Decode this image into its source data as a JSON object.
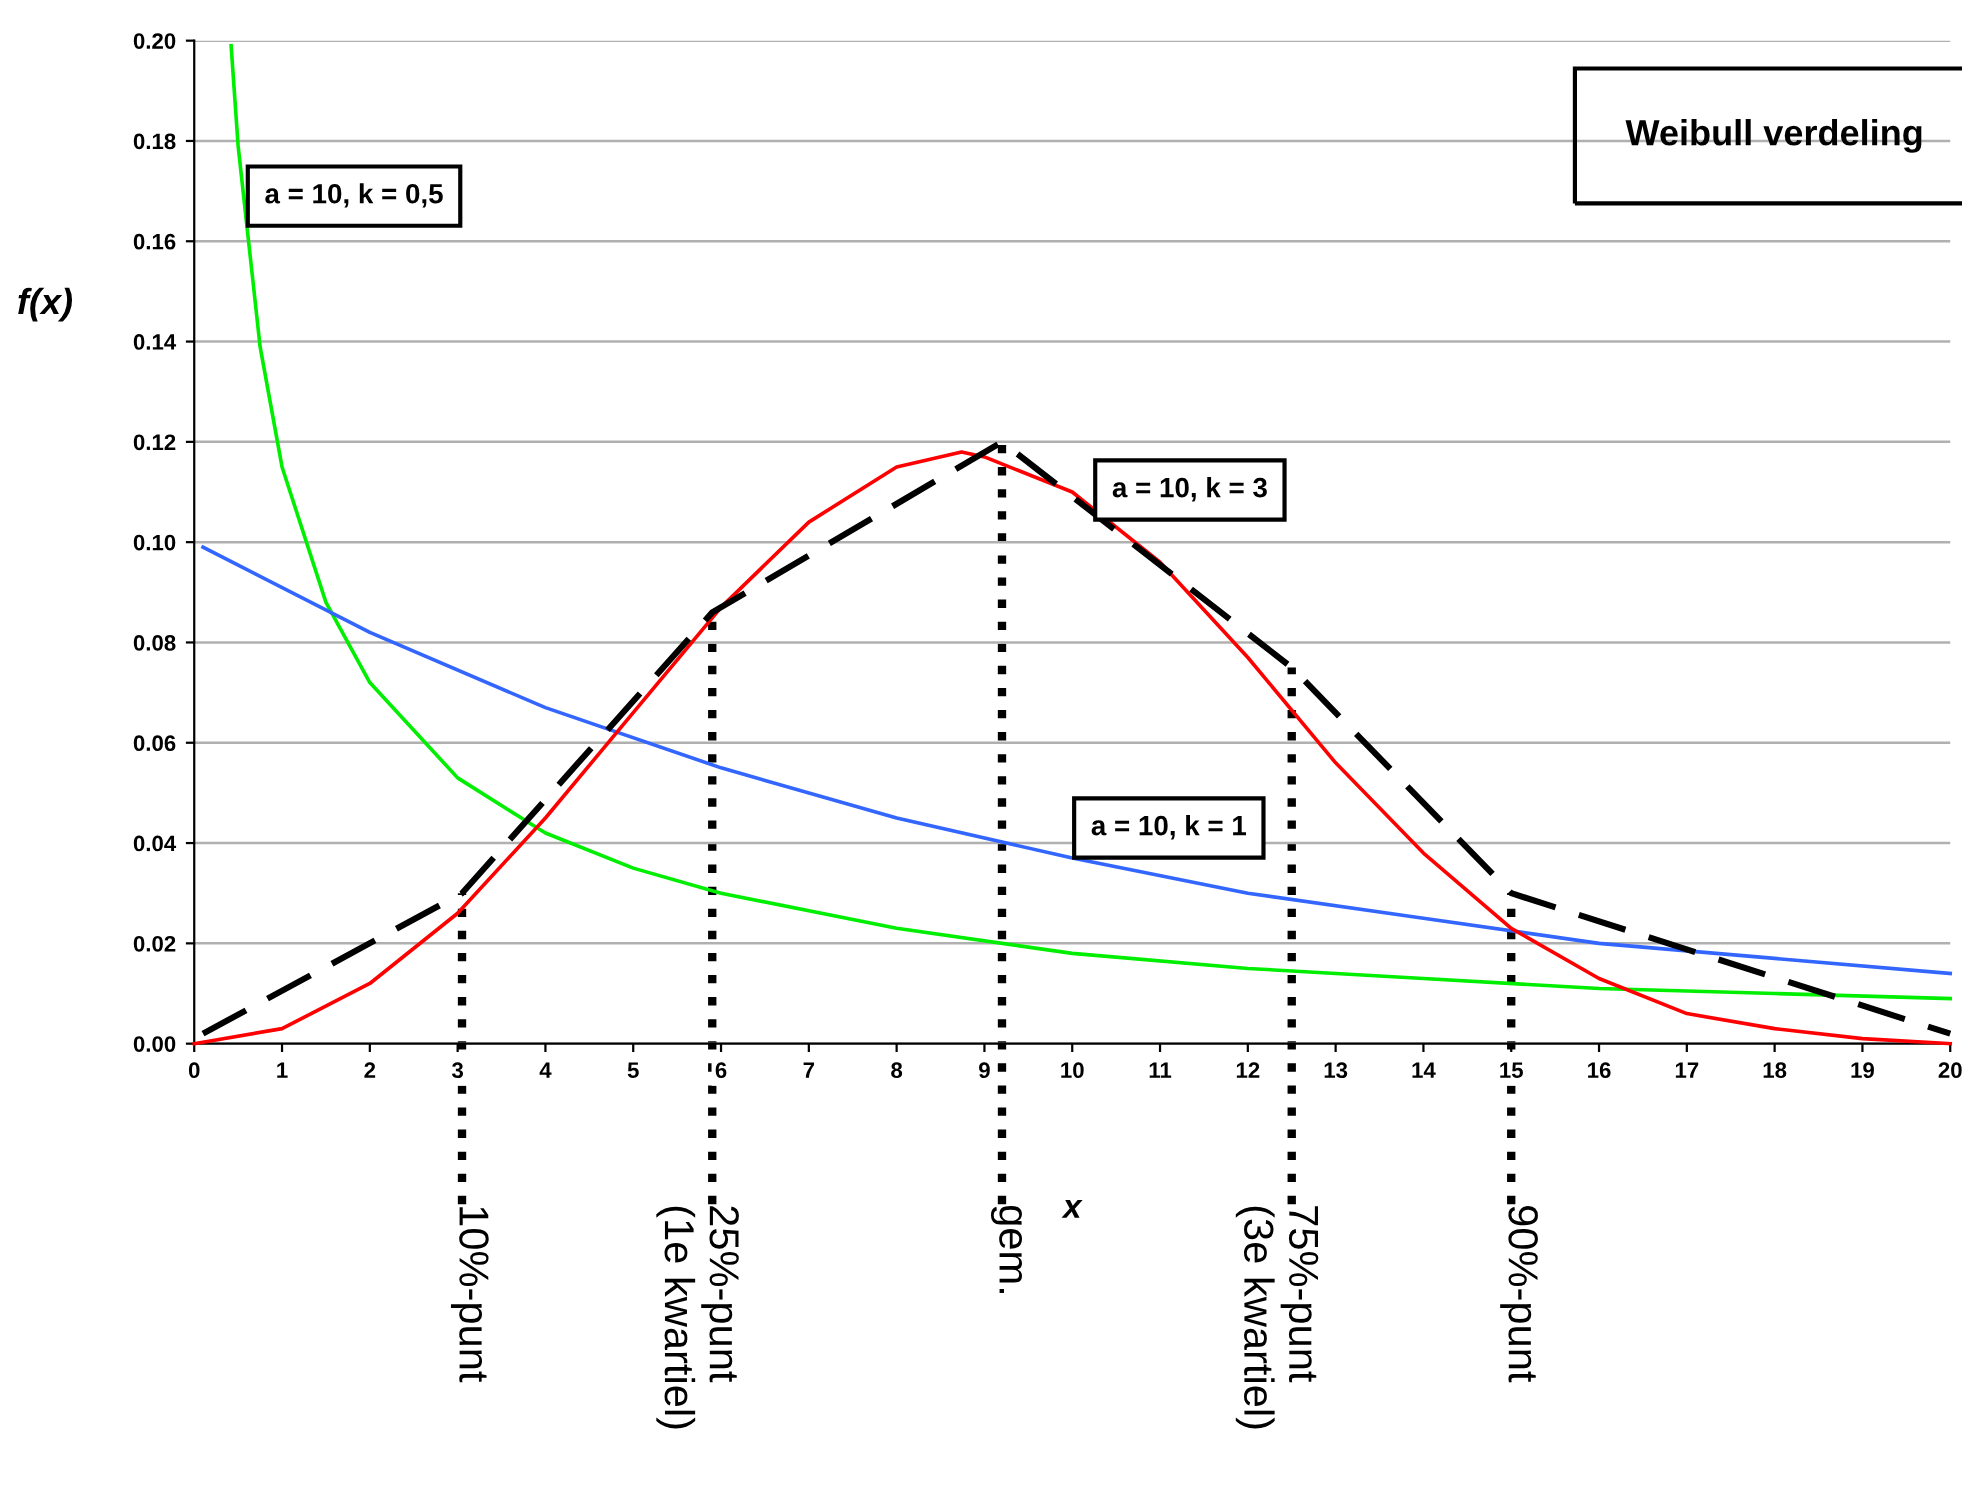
{
  "chart_data": {
    "type": "line",
    "title": "Weibull verdeling",
    "xlabel": "x",
    "ylabel": "f(x)",
    "xlim": [
      0,
      20
    ],
    "xticks": [
      0,
      1,
      2,
      3,
      4,
      5,
      6,
      7,
      8,
      9,
      10,
      11,
      12,
      13,
      14,
      15,
      16,
      17,
      18,
      19,
      20
    ],
    "ylim": [
      0,
      0.2
    ],
    "yticks": [
      {
        "value": 0,
        "label": "0.00"
      },
      {
        "value": 0.02,
        "label": "0.02"
      },
      {
        "value": 0.04,
        "label": "0.04"
      },
      {
        "value": 0.06,
        "label": "0.06"
      },
      {
        "value": 0.08,
        "label": "0.08"
      },
      {
        "value": 0.1,
        "label": "0.10"
      },
      {
        "value": 0.12,
        "label": "0.12"
      },
      {
        "value": 0.14,
        "label": "0.14"
      },
      {
        "value": 0.16,
        "label": "0.16"
      },
      {
        "value": 0.18,
        "label": "0.18"
      },
      {
        "value": 0.2,
        "label": "0.20"
      }
    ],
    "grid": "y",
    "legend": false,
    "marker": "none",
    "series": [
      {
        "name": "a = 10, k = 0,5",
        "color": "#00ee00",
        "line_style": "solid",
        "x": [
          0.42,
          0.5,
          0.75,
          1,
          1.5,
          2,
          3,
          4,
          5,
          6,
          8,
          10,
          12,
          14,
          16,
          18,
          20
        ],
        "values": [
          0.199,
          0.179,
          0.139,
          0.115,
          0.088,
          0.072,
          0.053,
          0.042,
          0.035,
          0.03,
          0.023,
          0.018,
          0.015,
          0.013,
          0.011,
          0.01,
          0.009
        ]
      },
      {
        "name": "a = 10, k = 1",
        "color": "#3366ff",
        "line_style": "solid",
        "x": [
          0.1,
          2,
          4,
          6,
          8,
          10,
          12,
          14,
          16,
          18,
          20
        ],
        "values": [
          0.099,
          0.082,
          0.067,
          0.055,
          0.045,
          0.037,
          0.03,
          0.025,
          0.02,
          0.017,
          0.014
        ]
      },
      {
        "name": "a = 10, k = 3",
        "color": "#ff0000",
        "line_style": "solid",
        "x": [
          0,
          1,
          2,
          3,
          4,
          5,
          6,
          7,
          8,
          8.74,
          9,
          10,
          11,
          12,
          13,
          14,
          15,
          16,
          17,
          18,
          19,
          20
        ],
        "values": [
          0,
          0.003,
          0.012,
          0.026,
          0.045,
          0.066,
          0.087,
          0.104,
          0.115,
          0.118,
          0.117,
          0.11,
          0.096,
          0.077,
          0.056,
          0.038,
          0.023,
          0.013,
          0.006,
          0.003,
          0.001,
          0.0
        ]
      },
      {
        "color": "#000000",
        "line_style": "dashed",
        "x": [
          0.1,
          3.05,
          5.9,
          9.2,
          12.5,
          15.0,
          20
        ],
        "values": [
          0.002,
          0.03,
          0.086,
          0.12,
          0.075,
          0.03,
          0.002
        ]
      }
    ],
    "ref_lines": [
      {
        "axis": "x",
        "value": 3.05,
        "label": "10%-punt",
        "line_style": "dotted",
        "color": "#000000"
      },
      {
        "axis": "x",
        "value": 5.9,
        "label": "25%-punt\n(1e kwartiel)",
        "line_style": "dotted",
        "color": "#000000"
      },
      {
        "axis": "x",
        "value": 9.2,
        "label": "gem.",
        "line_style": "dotted",
        "color": "#000000"
      },
      {
        "axis": "x",
        "value": 12.5,
        "label": "75%-punt\n(3e kwartiel)",
        "line_style": "dotted",
        "color": "#000000"
      },
      {
        "axis": "x",
        "value": 15.0,
        "label": "90%-punt",
        "line_style": "dotted",
        "color": "#000000"
      }
    ]
  }
}
